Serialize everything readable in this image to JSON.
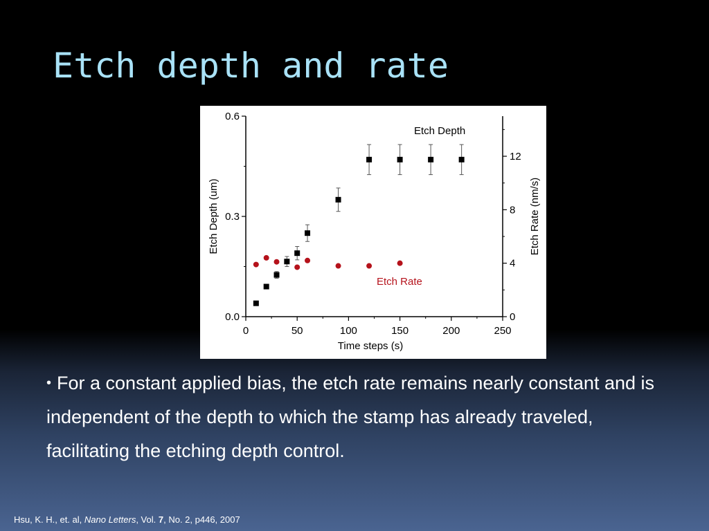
{
  "slide": {
    "title": "Etch depth and rate",
    "bullet_symbol": "•",
    "bullet_text": "For a constant applied bias, the etch rate remains nearly constant and is independent  of the depth to which the stamp has already traveled, facilitating the etching depth control.",
    "citation": {
      "authors": "Hsu, K. H., et. al,",
      "journal": "Nano Letters",
      "vol_prefix": ", Vol.",
      "volume": "7",
      "rest": ", No. 2, p446, 2007"
    }
  },
  "colors": {
    "title": "#a9e2f7",
    "depth_series": "#000000",
    "rate_series": "#b5121b",
    "axis": "#000000"
  },
  "chart_data": {
    "type": "scatter",
    "xlabel": "Time steps (s)",
    "ylabel": "Etch Depth (um)",
    "y2label": "Etch Rate (nm/s)",
    "xlim": [
      0,
      250
    ],
    "ylim": [
      0,
      0.6
    ],
    "y2lim": [
      0,
      15
    ],
    "xticks": [
      "0",
      "50",
      "100",
      "150",
      "200",
      "250"
    ],
    "yticks": [
      "0.0",
      "0.3",
      "0.6"
    ],
    "y2ticks": [
      "0",
      "4",
      "8",
      "12"
    ],
    "grid": false,
    "series": [
      {
        "name": "Etch Depth",
        "axis": "left",
        "marker": "square",
        "x": [
          10,
          20,
          30,
          40,
          50,
          60,
          90,
          120,
          150,
          180,
          210
        ],
        "y": [
          0.04,
          0.09,
          0.125,
          0.165,
          0.19,
          0.25,
          0.35,
          0.47,
          0.47,
          0.47,
          0.47
        ],
        "err": [
          0,
          0,
          0.01,
          0.015,
          0.02,
          0.025,
          0.035,
          0.045,
          0.045,
          0.045,
          0.045
        ]
      },
      {
        "name": "Etch Rate",
        "axis": "right",
        "marker": "circle",
        "x": [
          10,
          20,
          30,
          50,
          60,
          90,
          120,
          150
        ],
        "y": [
          3.9,
          4.4,
          4.1,
          3.7,
          4.2,
          3.8,
          3.8,
          4.0
        ]
      }
    ]
  }
}
